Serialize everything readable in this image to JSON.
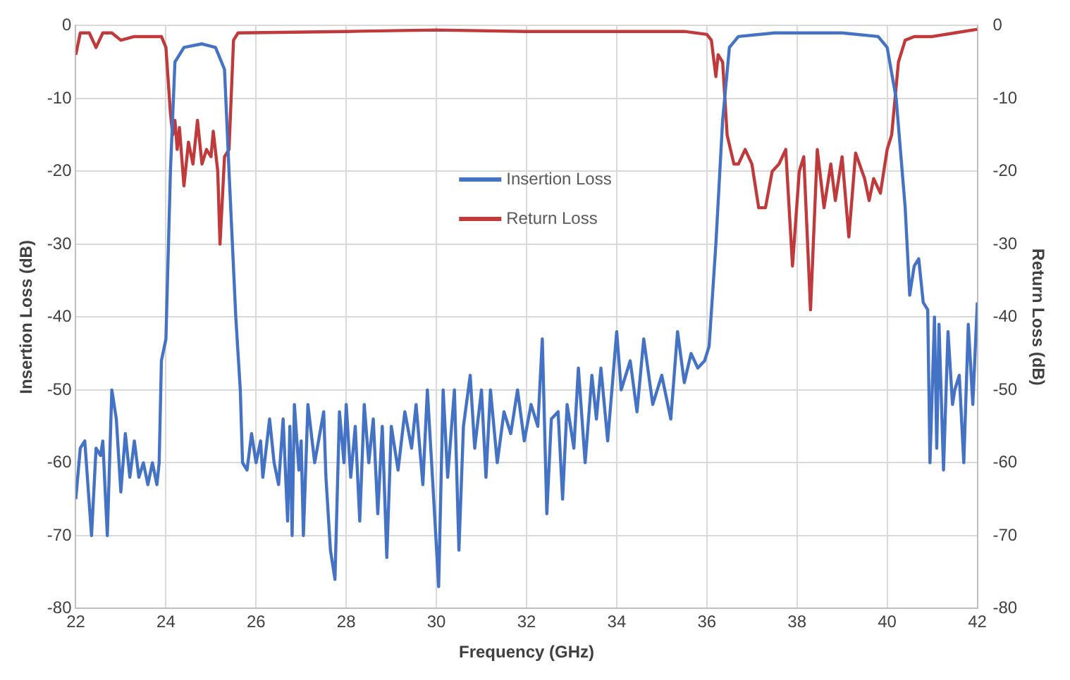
{
  "chart_data": {
    "type": "line",
    "xlabel": "Frequency (GHz)",
    "ylabel": "Insertion Loss (dB)",
    "y2label": "Return Loss (dB)",
    "xlim": [
      22,
      42
    ],
    "xticks": [
      22,
      24,
      26,
      28,
      30,
      32,
      34,
      36,
      38,
      40,
      42
    ],
    "ylim": [
      -80,
      0
    ],
    "yticks": [
      -80,
      -70,
      -60,
      -50,
      -40,
      -30,
      -20,
      -10,
      0
    ],
    "y2lim": [
      -80,
      0
    ],
    "y2ticks": [
      -80,
      -70,
      -60,
      -50,
      -40,
      -30,
      -20,
      -10,
      0
    ],
    "grid": true,
    "legend": "top",
    "marker": "none",
    "line_style": "solid",
    "series": [
      {
        "name": "Insertion Loss",
        "color": "#4472c4",
        "x": [
          22.0,
          22.1,
          22.2,
          22.35,
          22.45,
          22.55,
          22.6,
          22.7,
          22.8,
          22.9,
          23.0,
          23.1,
          23.2,
          23.3,
          23.4,
          23.5,
          23.6,
          23.7,
          23.8,
          23.85,
          23.9,
          24.0,
          24.1,
          24.2,
          24.4,
          24.8,
          25.1,
          25.3,
          25.4,
          25.55,
          25.65,
          25.7,
          25.8,
          25.9,
          26.0,
          26.1,
          26.15,
          26.3,
          26.4,
          26.5,
          26.6,
          26.7,
          26.75,
          26.8,
          26.85,
          26.95,
          27.0,
          27.05,
          27.15,
          27.3,
          27.5,
          27.55,
          27.65,
          27.75,
          27.85,
          27.95,
          28.0,
          28.1,
          28.2,
          28.3,
          28.4,
          28.5,
          28.6,
          28.7,
          28.8,
          28.9,
          29.0,
          29.15,
          29.3,
          29.45,
          29.55,
          29.7,
          29.8,
          29.95,
          30.05,
          30.15,
          30.25,
          30.4,
          30.5,
          30.6,
          30.75,
          30.85,
          31.0,
          31.1,
          31.2,
          31.35,
          31.5,
          31.65,
          31.8,
          31.95,
          32.1,
          32.25,
          32.35,
          32.45,
          32.55,
          32.7,
          32.8,
          32.9,
          33.05,
          33.15,
          33.3,
          33.45,
          33.55,
          33.65,
          33.8,
          34.0,
          34.1,
          34.3,
          34.45,
          34.6,
          34.8,
          35.0,
          35.2,
          35.35,
          35.5,
          35.65,
          35.8,
          35.95,
          36.05,
          36.2,
          36.35,
          36.5,
          36.7,
          37.5,
          39.0,
          39.8,
          40.0,
          40.2,
          40.4,
          40.5,
          40.6,
          40.7,
          40.8,
          40.9,
          40.95,
          41.05,
          41.1,
          41.15,
          41.25,
          41.35,
          41.45,
          41.5,
          41.6,
          41.7,
          41.8,
          41.9,
          42.0
        ],
        "values": [
          -65,
          -58,
          -57,
          -70,
          -58,
          -59,
          -57,
          -70,
          -50,
          -54,
          -64,
          -56,
          -62,
          -57,
          -62,
          -60,
          -63,
          -60,
          -63,
          -60,
          -46,
          -43,
          -20,
          -5,
          -3,
          -2.5,
          -3,
          -6,
          -20,
          -40,
          -50,
          -60,
          -61,
          -56,
          -60,
          -57,
          -62,
          -54,
          -60,
          -63,
          -54,
          -68,
          -55,
          -70,
          -52,
          -61,
          -57,
          -70,
          -52,
          -60,
          -53,
          -62,
          -72,
          -76,
          -53,
          -60,
          -52,
          -62,
          -55,
          -68,
          -52,
          -60,
          -54,
          -67,
          -55,
          -73,
          -55,
          -61,
          -53,
          -58,
          -52,
          -63,
          -50,
          -66,
          -77,
          -50,
          -62,
          -50,
          -72,
          -55,
          -48,
          -58,
          -50,
          -62,
          -50,
          -60,
          -53,
          -56,
          -50,
          -57,
          -52,
          -55,
          -43,
          -67,
          -54,
          -53,
          -65,
          -52,
          -58,
          -47,
          -60,
          -48,
          -54,
          -47,
          -57,
          -42,
          -50,
          -46,
          -53,
          -43,
          -52,
          -48,
          -54,
          -42,
          -49,
          -45,
          -47,
          -46,
          -44,
          -30,
          -13,
          -3,
          -1.5,
          -1,
          -1,
          -1.5,
          -3,
          -10,
          -25,
          -37,
          -33,
          -32,
          -38,
          -39,
          -60,
          -40,
          -58,
          -41,
          -61,
          -42,
          -52,
          -50,
          -48,
          -60,
          -41,
          -52,
          -38
        ]
      },
      {
        "name": "Return Loss",
        "color": "#c0393b",
        "axis": "y2",
        "x": [
          22.0,
          22.1,
          22.3,
          22.45,
          22.6,
          22.8,
          23.0,
          23.3,
          23.6,
          23.9,
          24.0,
          24.1,
          24.15,
          24.2,
          24.25,
          24.3,
          24.4,
          24.5,
          24.6,
          24.7,
          24.8,
          24.9,
          25.0,
          25.05,
          25.15,
          25.2,
          25.3,
          25.4,
          25.5,
          25.6,
          28,
          30,
          32,
          34,
          35.5,
          36.0,
          36.1,
          36.2,
          36.25,
          36.35,
          36.45,
          36.6,
          36.7,
          36.85,
          37.0,
          37.15,
          37.3,
          37.45,
          37.6,
          37.75,
          37.9,
          38.05,
          38.15,
          38.3,
          38.45,
          38.6,
          38.75,
          38.85,
          39.0,
          39.15,
          39.3,
          39.5,
          39.6,
          39.7,
          39.85,
          40.0,
          40.1,
          40.25,
          40.4,
          40.6,
          41.0,
          41.5,
          42
        ],
        "values": [
          -4,
          -1,
          -1,
          -3,
          -1,
          -1,
          -2,
          -1.5,
          -1.5,
          -1.5,
          -3,
          -12,
          -15,
          -13,
          -17,
          -14,
          -22,
          -16,
          -19,
          -13,
          -19,
          -17,
          -18,
          -14.5,
          -20,
          -30,
          -18,
          -17,
          -2,
          -1,
          -0.8,
          -0.6,
          -0.8,
          -0.8,
          -0.8,
          -1.2,
          -2,
          -7,
          -4,
          -5,
          -15,
          -19,
          -19,
          -17,
          -19,
          -25,
          -25,
          -20,
          -19,
          -17,
          -33,
          -20,
          -18,
          -39,
          -17,
          -25,
          -19,
          -24,
          -18,
          -29,
          -17.5,
          -21,
          -24,
          -21,
          -23,
          -17,
          -15,
          -5,
          -2,
          -1.5,
          -1.5,
          -1,
          -0.5
        ]
      }
    ]
  }
}
